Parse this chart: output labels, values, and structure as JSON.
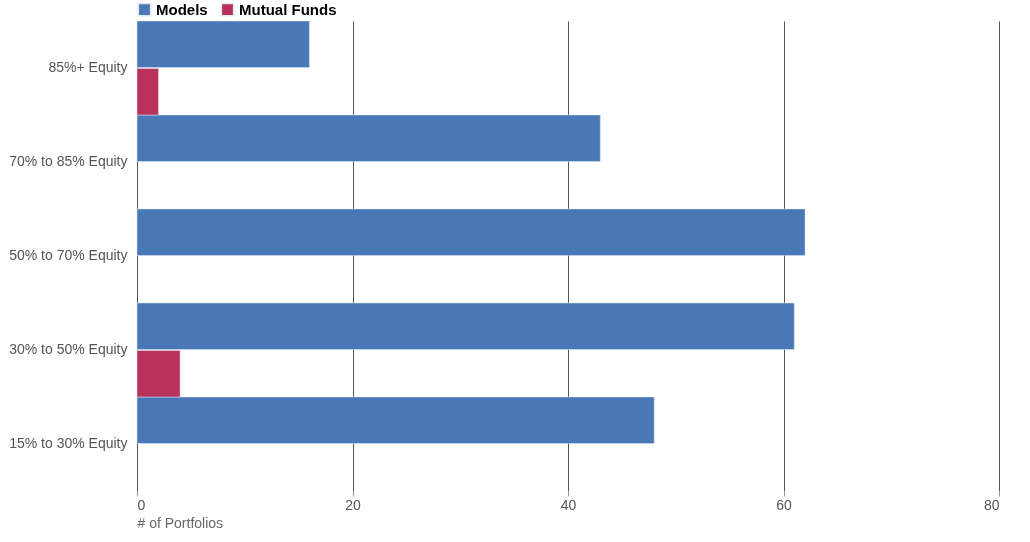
{
  "chart_data": {
    "type": "bar",
    "orientation": "horizontal",
    "xlabel": "# of Portfolios",
    "categories": [
      "85%+ Equity",
      "70% to 85% Equity",
      "50% to 70% Equity",
      "30% to 50% Equity",
      "15% to 30% Equity"
    ],
    "series": [
      {
        "name": "Models",
        "color": "#4a78b6",
        "values": [
          16,
          43,
          62,
          61,
          48
        ]
      },
      {
        "name": "Mutual Funds",
        "color": "#b9325b",
        "values": [
          2,
          null,
          null,
          4,
          null
        ]
      }
    ],
    "xlim": [
      0,
      80
    ],
    "xticks": [
      0,
      20,
      40,
      60,
      80
    ],
    "grid": "x",
    "legend": "top left"
  }
}
